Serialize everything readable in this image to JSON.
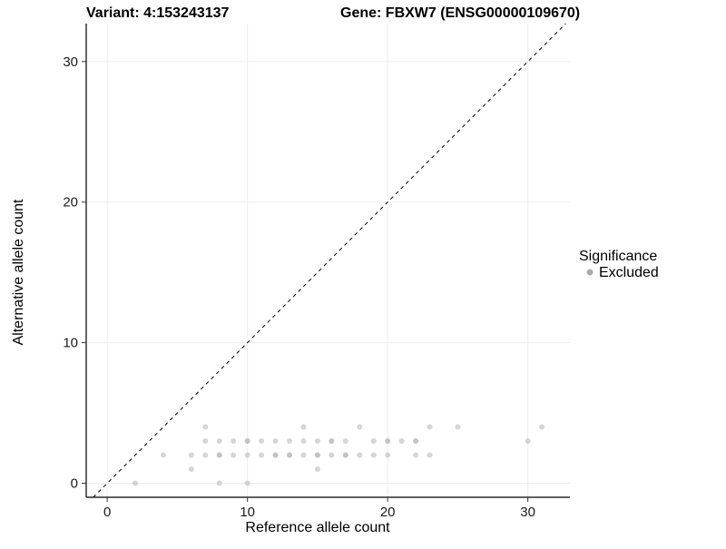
{
  "chart_data": {
    "type": "scatter",
    "title_left": "Variant: 4:153243137",
    "title_right": "Gene: FBXW7 (ENSG00000109670)",
    "xlabel": "Reference allele count",
    "ylabel": "Alternative allele count",
    "xlim": [
      -1.5,
      33
    ],
    "ylim": [
      -1,
      32.7
    ],
    "xticks": [
      0,
      10,
      20,
      30
    ],
    "yticks": [
      0,
      10,
      20,
      30
    ],
    "grid": true,
    "grid_color": "#ededed",
    "axis_color": "#000000",
    "point_color": "#b5b5b5",
    "point_opacity": 0.55,
    "point_radius": 3,
    "identity_line": {
      "style": "dashed",
      "slope": 1,
      "intercept": 0,
      "color": "#000000"
    },
    "legend": {
      "title": "Significance",
      "position": "right",
      "entries": [
        {
          "label": "Excluded",
          "color": "#ababab"
        }
      ]
    },
    "series": [
      {
        "name": "Excluded",
        "points": [
          [
            2,
            0
          ],
          [
            8,
            0
          ],
          [
            10,
            0
          ],
          [
            6,
            1
          ],
          [
            15,
            1
          ],
          [
            4,
            2
          ],
          [
            6,
            2
          ],
          [
            7,
            2
          ],
          [
            8,
            2
          ],
          [
            8,
            2
          ],
          [
            9,
            2
          ],
          [
            10,
            2
          ],
          [
            11,
            2
          ],
          [
            12,
            2
          ],
          [
            12,
            2
          ],
          [
            13,
            2
          ],
          [
            13,
            2
          ],
          [
            14,
            2
          ],
          [
            15,
            2
          ],
          [
            15,
            2
          ],
          [
            16,
            2
          ],
          [
            17,
            2
          ],
          [
            17,
            2
          ],
          [
            18,
            2
          ],
          [
            19,
            2
          ],
          [
            20,
            2
          ],
          [
            22,
            2
          ],
          [
            23,
            2
          ],
          [
            7,
            3
          ],
          [
            8,
            3
          ],
          [
            9,
            3
          ],
          [
            10,
            3
          ],
          [
            10,
            3
          ],
          [
            11,
            3
          ],
          [
            12,
            3
          ],
          [
            13,
            3
          ],
          [
            14,
            3
          ],
          [
            15,
            3
          ],
          [
            16,
            3
          ],
          [
            16,
            3
          ],
          [
            17,
            3
          ],
          [
            19,
            3
          ],
          [
            20,
            3
          ],
          [
            20,
            3
          ],
          [
            21,
            3
          ],
          [
            22,
            3
          ],
          [
            22,
            3
          ],
          [
            30,
            3
          ],
          [
            7,
            4
          ],
          [
            14,
            4
          ],
          [
            18,
            4
          ],
          [
            23,
            4
          ],
          [
            25,
            4
          ],
          [
            31,
            4
          ]
        ]
      }
    ]
  }
}
